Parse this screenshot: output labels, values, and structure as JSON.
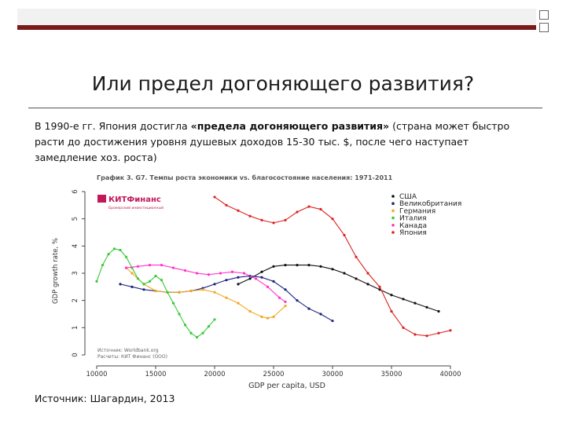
{
  "slide": {
    "title": "Или предел догоняющего развития?",
    "paragraph_start": "В 1990-е гг.  Япония достигла ",
    "paragraph_bold": "«предела догоняющего развития»",
    "paragraph_end": " (страна может быстро расти до достижения уровня душевых доходов 15-30 тыс. $, после чего наступает замедление хоз. роста)",
    "source": "Источник: Шагардин, 2013",
    "accent_color": "#7b1a1a"
  },
  "chart_data": {
    "type": "line",
    "title": "График 3. G7. Темпы роста экономики vs. благосостояние населения: 1971-2011",
    "logo_text": "КИТФинанс",
    "logo_subtext": "Брокерский инвестиционный",
    "xlabel": "GDP per capita, USD",
    "ylabel": "GDP growth rate, %",
    "xlim": [
      10000,
      40000
    ],
    "ylim": [
      0,
      6
    ],
    "x_ticks": [
      10000,
      15000,
      20000,
      25000,
      30000,
      35000,
      40000
    ],
    "y_ticks": [
      0,
      1,
      2,
      3,
      4,
      5,
      6
    ],
    "note_line1": "Источник: Worldbank.org",
    "note_line2": "Расчеты: КИТ Финанс (ООО)",
    "legend_position": "top-right",
    "series": [
      {
        "name": "США",
        "color": "#111111",
        "x": [
          22000,
          23000,
          24000,
          25000,
          26000,
          27000,
          28000,
          29000,
          30000,
          31000,
          32000,
          33000,
          34000,
          35000,
          36000,
          37000,
          38000,
          39000
        ],
        "y": [
          2.6,
          2.8,
          3.05,
          3.25,
          3.3,
          3.3,
          3.3,
          3.25,
          3.15,
          3.0,
          2.8,
          2.6,
          2.4,
          2.2,
          2.05,
          1.9,
          1.75,
          1.6
        ]
      },
      {
        "name": "Великобритания",
        "color": "#1a237e",
        "x": [
          12000,
          13000,
          14000,
          15000,
          16000,
          17000,
          18000,
          19000,
          20000,
          21000,
          22000,
          23000,
          24000,
          25000,
          26000,
          27000,
          28000,
          29000,
          30000
        ],
        "y": [
          2.6,
          2.5,
          2.4,
          2.35,
          2.3,
          2.3,
          2.35,
          2.45,
          2.6,
          2.75,
          2.85,
          2.9,
          2.85,
          2.7,
          2.4,
          2.0,
          1.7,
          1.5,
          1.25
        ]
      },
      {
        "name": "Германия",
        "color": "#f5a623",
        "x": [
          12500,
          13000,
          14000,
          15000,
          16000,
          17000,
          18000,
          19000,
          20000,
          21000,
          22000,
          23000,
          24000,
          24500,
          25000,
          26000
        ],
        "y": [
          3.2,
          3.0,
          2.6,
          2.35,
          2.3,
          2.3,
          2.35,
          2.4,
          2.3,
          2.1,
          1.9,
          1.6,
          1.4,
          1.35,
          1.4,
          1.8
        ]
      },
      {
        "name": "Италия",
        "color": "#39c939",
        "x": [
          10000,
          10500,
          11000,
          11500,
          12000,
          12500,
          13000,
          13500,
          14000,
          14500,
          15000,
          15500,
          16000,
          16500,
          17000,
          17500,
          18000,
          18500,
          19000,
          19500,
          20000
        ],
        "y": [
          2.7,
          3.3,
          3.7,
          3.9,
          3.85,
          3.6,
          3.2,
          2.8,
          2.6,
          2.7,
          2.9,
          2.75,
          2.3,
          1.9,
          1.5,
          1.1,
          0.8,
          0.65,
          0.8,
          1.05,
          1.3
        ]
      },
      {
        "name": "Канада",
        "color": "#ff33cc",
        "x": [
          12500,
          13500,
          14500,
          15500,
          16500,
          17500,
          18500,
          19500,
          20500,
          21500,
          22500,
          23500,
          24500,
          25500,
          26000
        ],
        "y": [
          3.2,
          3.25,
          3.3,
          3.3,
          3.2,
          3.1,
          3.0,
          2.95,
          3.0,
          3.05,
          3.0,
          2.8,
          2.5,
          2.1,
          1.95
        ]
      },
      {
        "name": "Япония",
        "color": "#dd2222",
        "x": [
          20000,
          21000,
          22000,
          23000,
          24000,
          25000,
          26000,
          27000,
          28000,
          29000,
          30000,
          31000,
          32000,
          33000,
          34000,
          35000,
          36000,
          37000,
          38000,
          39000,
          40000
        ],
        "y": [
          5.8,
          5.5,
          5.3,
          5.1,
          4.95,
          4.85,
          4.95,
          5.25,
          5.45,
          5.35,
          5.0,
          4.4,
          3.6,
          3.0,
          2.5,
          1.6,
          1.0,
          0.75,
          0.7,
          0.8,
          0.9
        ]
      }
    ]
  }
}
